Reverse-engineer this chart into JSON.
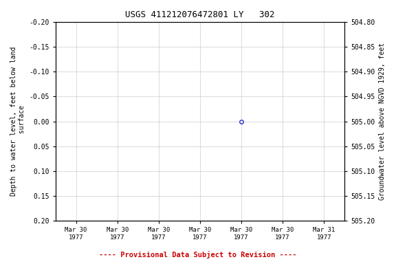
{
  "title": "USGS 411212076472801 LY   302",
  "xlabel_bottom": "---- Provisional Data Subject to Revision ----",
  "ylabel_left": "Depth to water level, feet below land\n surface",
  "ylabel_right": "Groundwater level above NGVD 1929, feet",
  "ylim_left": [
    -0.2,
    0.2
  ],
  "ylim_right": [
    504.8,
    505.2
  ],
  "yticks_left": [
    -0.2,
    -0.15,
    -0.1,
    -0.05,
    0.0,
    0.05,
    0.1,
    0.15,
    0.2
  ],
  "ytick_labels_left": [
    "-0.20",
    "-0.15",
    "-0.10",
    "-0.05",
    "0.00",
    "0.05",
    "0.10",
    "0.15",
    "0.20"
  ],
  "yticks_right": [
    505.2,
    505.15,
    505.1,
    505.05,
    505.0,
    504.95,
    504.9,
    504.85,
    504.8
  ],
  "ytick_labels_right": [
    "505.20",
    "505.15",
    "505.10",
    "505.05",
    "505.00",
    "504.95",
    "504.90",
    "504.85",
    "504.80"
  ],
  "xtick_labels": [
    "Mar 30\n1977",
    "Mar 30\n1977",
    "Mar 30\n1977",
    "Mar 30\n1977",
    "Mar 30\n1977",
    "Mar 30\n1977",
    "Mar 31\n1977"
  ],
  "data_x": [
    4.0
  ],
  "data_y": [
    0.0
  ],
  "data_color": "#0000cc",
  "background_color": "#ffffff",
  "grid_color": "#cccccc",
  "title_color": "#000000",
  "provisional_color": "#cc0000",
  "marker": "o",
  "marker_size": 4,
  "marker_facecolor": "none",
  "num_xticks": 7,
  "xlim": [
    -0.5,
    6.5
  ]
}
